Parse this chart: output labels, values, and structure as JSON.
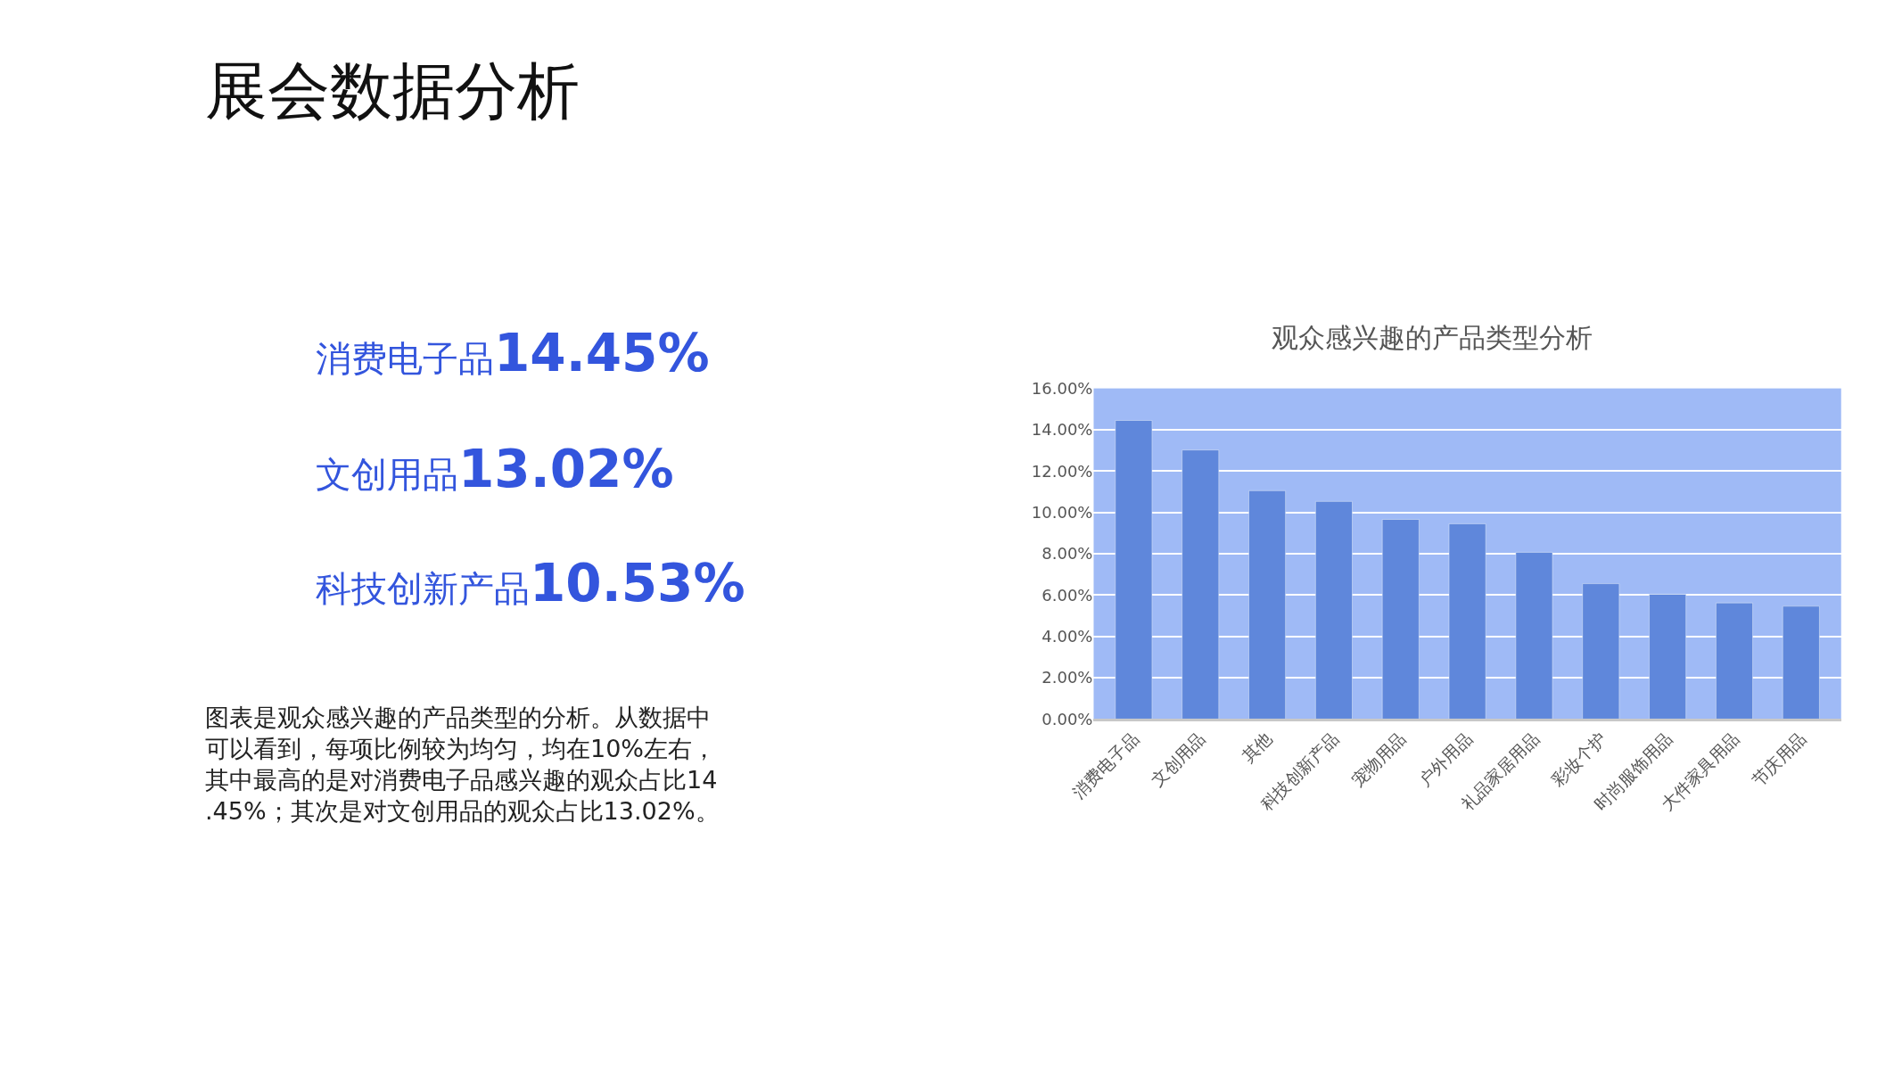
{
  "chart_data": {
    "type": "bar",
    "title": "观众感兴趣的产品类型分析",
    "categories": [
      "消费电子品",
      "文创用品",
      "其他",
      "科技创新产品",
      "宠物用品",
      "户外用品",
      "礼品家居用品",
      "彩妆个护",
      "时尚服饰用品",
      "大件家具用品",
      "节庆用品"
    ],
    "values": [
      14.45,
      13.02,
      11.05,
      10.53,
      9.66,
      9.45,
      8.07,
      6.55,
      6.04,
      5.62,
      5.46
    ],
    "color": "#5f87db",
    "ylim": [
      0,
      16
    ],
    "yticks": [
      {
        "value": 0,
        "label": "0.00%"
      },
      {
        "value": 2,
        "label": "2.00%"
      },
      {
        "value": 4,
        "label": "4.00%"
      },
      {
        "value": 6,
        "label": "6.00%"
      },
      {
        "value": 8,
        "label": "8.00%"
      },
      {
        "value": 10,
        "label": "10.00%"
      },
      {
        "value": 12,
        "label": "12.00%"
      },
      {
        "value": 14,
        "label": "14.00%"
      },
      {
        "value": 16,
        "label": "16.00%"
      }
    ],
    "grid": "y",
    "annotations": [
      "展会数据分析",
      "消费电子品14.45%",
      "文创用品13.02%",
      "科技创新产品10.53%",
      "图表是观众感兴趣的产品类型的分析。从数据中可以看到，每项比例较为均匀，均在10%左右，其中最高的是对消费电子品感兴趣的观众占比14.45%；其次是对文创用品的观众占比13.02%。"
    ]
  }
}
